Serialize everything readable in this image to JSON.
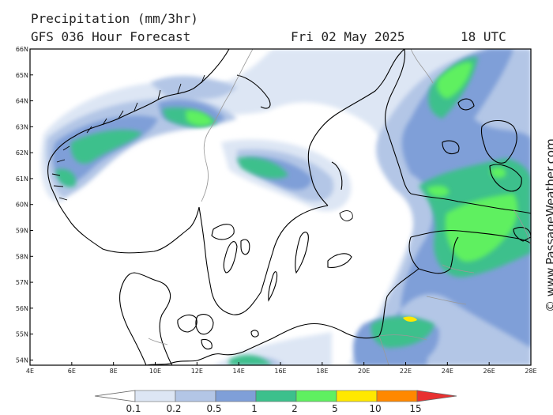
{
  "header": {
    "line1": "Precipitation (mm/3hr)",
    "line2_left": "GFS 036 Hour Forecast",
    "date": "Fri 02 May 2025",
    "time": "18 UTC"
  },
  "credit": "© www.PassageWeather.com",
  "axes": {
    "lat_labels": [
      "66N",
      "65N",
      "64N",
      "63N",
      "62N",
      "61N",
      "60N",
      "59N",
      "58N",
      "57N",
      "56N",
      "55N",
      "54N"
    ],
    "lon_labels": [
      "4E",
      "6E",
      "8E",
      "10E",
      "12E",
      "14E",
      "16E",
      "18E",
      "20E",
      "22E",
      "24E",
      "26E",
      "28E"
    ],
    "lat_range": [
      53.8,
      66
    ],
    "lon_range": [
      4,
      28
    ]
  },
  "legend": {
    "labels": [
      "0.1",
      "0.2",
      "0.5",
      "1",
      "2",
      "5",
      "10",
      "15"
    ],
    "colors": [
      "#ffffff",
      "#dde6f4",
      "#b3c6e6",
      "#7f9fd8",
      "#3cc08c",
      "#5ff060",
      "#ffe800",
      "#ff8800",
      "#e83030"
    ]
  }
}
